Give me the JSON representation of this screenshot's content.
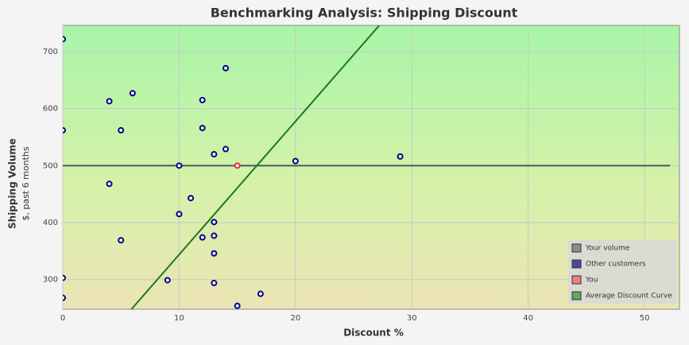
{
  "chart_data": {
    "type": "scatter",
    "title": "Benchmarking Analysis: Shipping Discount",
    "xlabel": "Discount %",
    "ylabel": "Shipping Volume",
    "ylabel_sub": "$, past 6 months",
    "xlim": [
      0,
      53
    ],
    "xticks": [
      0,
      10,
      20,
      30,
      40,
      50
    ],
    "ylim": [
      248,
      746
    ],
    "yticks": [
      300,
      400,
      500,
      600,
      700
    ],
    "grid": true,
    "legend": "bottom-right",
    "series": [
      {
        "name": "Your volume",
        "color": "#555555",
        "legend_color": "#8c8c8c",
        "mark": "line",
        "x": [
          0,
          52.2
        ],
        "values": [
          500,
          500
        ]
      },
      {
        "name": "Other customers",
        "color": "#000080",
        "legend_color": "#4a4a9c",
        "mark": "marker",
        "x": [
          0,
          0,
          0,
          0,
          4,
          6,
          5,
          4,
          5,
          10,
          10,
          11,
          9,
          12,
          12,
          14,
          14,
          13,
          13,
          13,
          12,
          13,
          13,
          15,
          17,
          20,
          29
        ],
        "values": [
          722,
          562,
          303,
          268,
          613,
          627,
          562,
          468,
          369,
          500,
          415,
          443,
          299,
          615,
          566,
          671,
          529,
          520,
          401,
          377,
          374,
          346,
          294,
          254,
          275,
          508,
          516
        ]
      },
      {
        "name": "You",
        "color": "#e03030",
        "legend_color": "#e88080",
        "mark": "marker",
        "x": [
          15
        ],
        "values": [
          500
        ]
      },
      {
        "name": "Average Discount Curve",
        "color": "#1a7a1a",
        "legend_color": "#5fa85f",
        "mark": "line",
        "x": [
          5.9,
          27.2
        ],
        "values": [
          248,
          746
        ]
      }
    ]
  }
}
